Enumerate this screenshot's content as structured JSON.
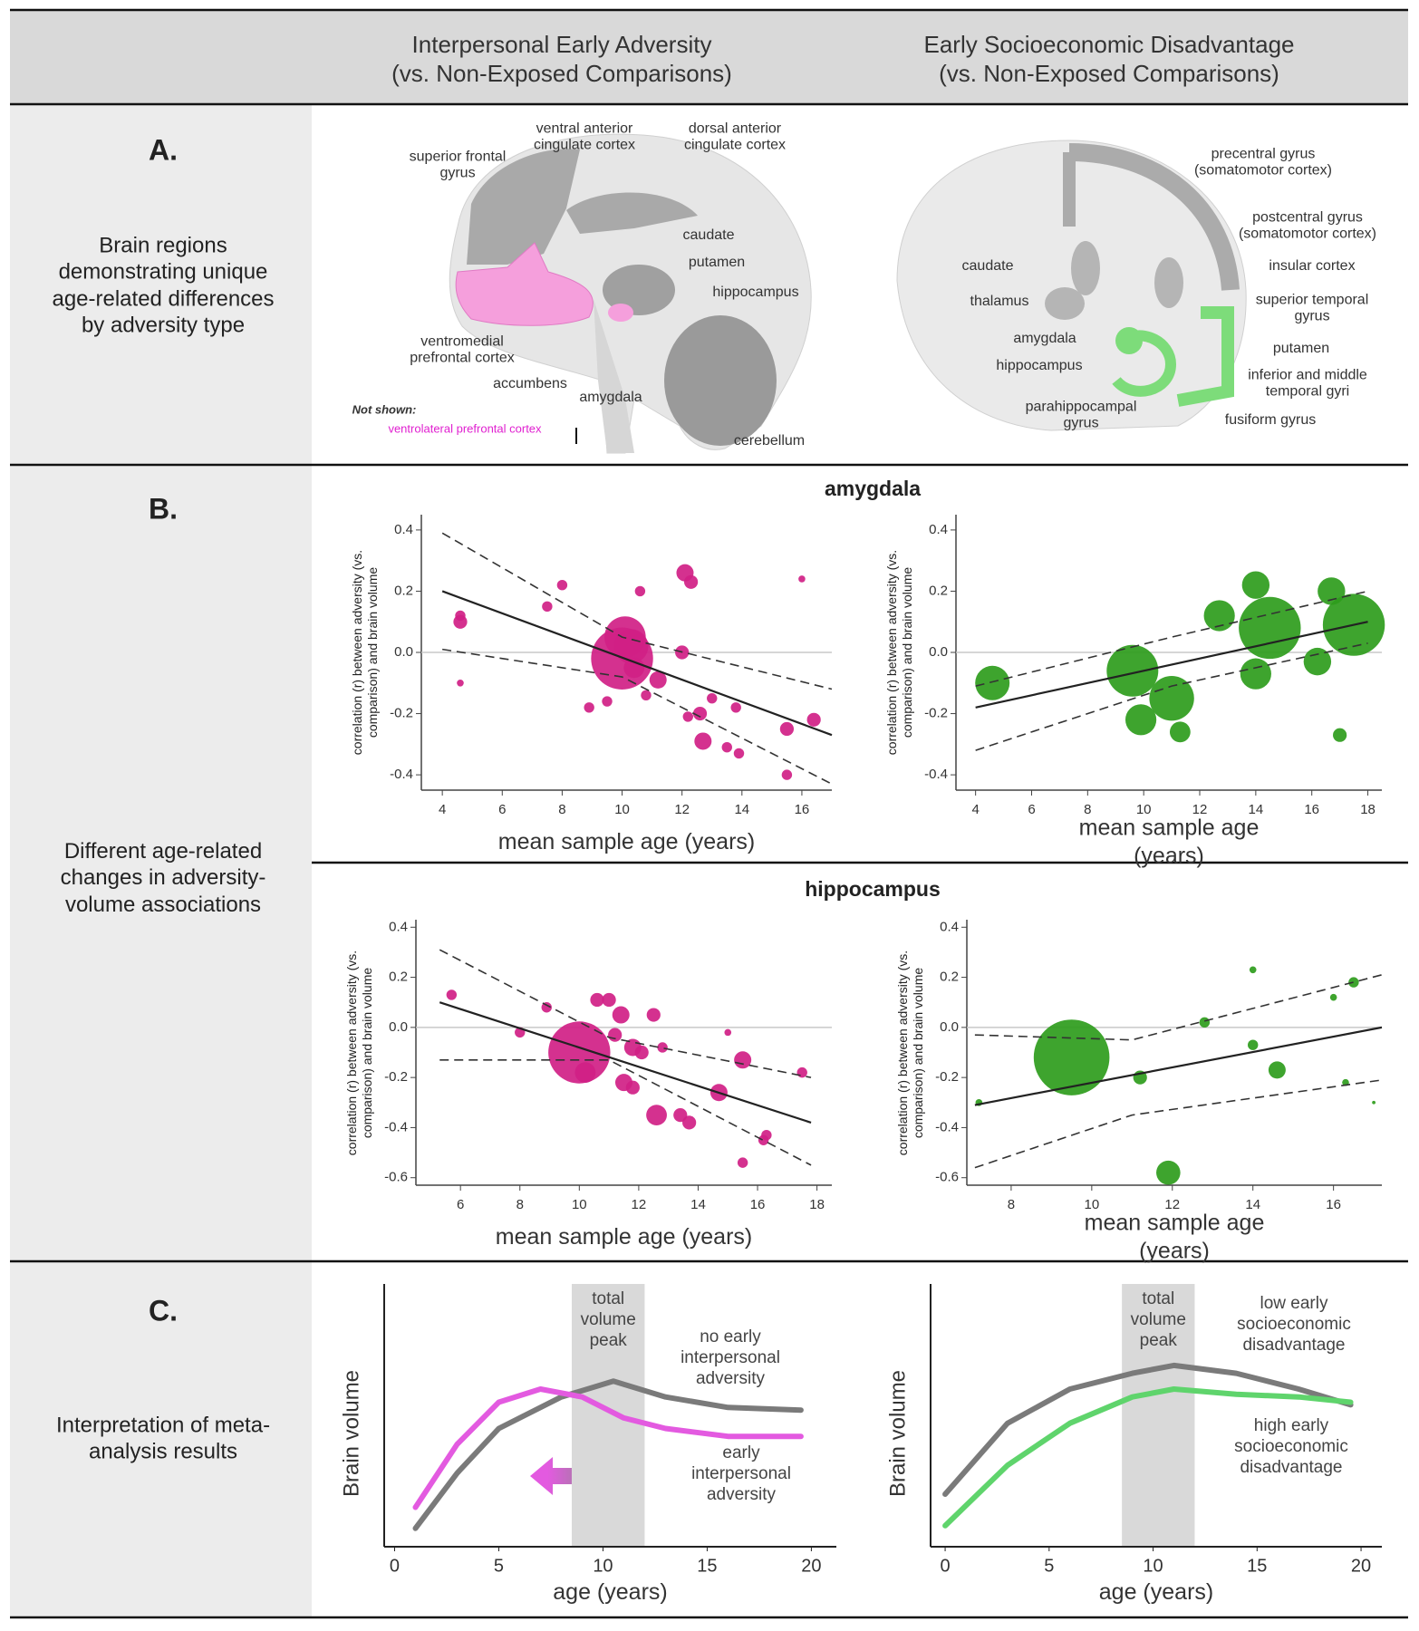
{
  "header": {
    "columns": [
      {
        "title": "Interpersonal Early Adversity",
        "subtitle": "(vs. Non-Exposed Comparisons)"
      },
      {
        "title": "Early Socioeconomic Disadvantage",
        "subtitle": "(vs. Non-Exposed Comparisons)"
      }
    ]
  },
  "sections": [
    {
      "letter": "A.",
      "description": "Brain regions demonstrating unique age-related differences by adversity type"
    },
    {
      "letter": "B.",
      "description": "Different age-related changes in adversity-volume associations"
    },
    {
      "letter": "C.",
      "description": "Interpretation of meta-analysis results"
    }
  ],
  "brain_labels": {
    "interpersonal": [
      "superior frontal gyrus",
      "ventral anterior cingulate cortex",
      "dorsal anterior cingulate cortex",
      "caudate",
      "putamen",
      "hippocampus",
      "ventromedial prefrontal cortex",
      "accumbens",
      "amygdala",
      "cerebellum"
    ],
    "not_shown": {
      "heading": "Not shown:",
      "text": "ventrolateral prefrontal cortex"
    },
    "socioeconomic": [
      "precentral gyrus (somatomotor cortex)",
      "postcentral gyrus (somatomotor cortex)",
      "insular cortex",
      "caudate",
      "thalamus",
      "superior temporal gyrus",
      "amygdala",
      "hippocampus",
      "putamen",
      "inferior and middle temporal gyri",
      "parahippocampal gyrus",
      "fusiform gyrus"
    ]
  },
  "panel_titles": [
    "amygdala",
    "hippocampus"
  ],
  "chart_data": [
    {
      "type": "scatter",
      "color": "#d01f86",
      "xlabel": "mean sample age (years)",
      "ylabel": "correlation (r) between adversity (vs. comparison) and brain volume",
      "xlim": [
        3.3,
        17
      ],
      "ylim": [
        -0.45,
        0.45
      ],
      "xticks": [
        4,
        6,
        8,
        10,
        12,
        14,
        16
      ],
      "yticks": [
        0.4,
        0.2,
        {
          "value": 0,
          "label": "0.0"
        },
        -0.2,
        -0.4
      ],
      "hline": 0,
      "x": [
        4.6,
        4.6,
        4.6,
        7.5,
        8,
        8.9,
        9.5,
        10.1,
        10,
        10.3,
        10.4,
        10.6,
        10.8,
        11.2,
        12,
        12.1,
        12.3,
        12.2,
        12.6,
        12.7,
        13,
        13.5,
        13.8,
        13.9,
        15.5,
        15.5,
        16,
        16.4
      ],
      "values": [
        0.12,
        0.1,
        -0.1,
        0.15,
        0.22,
        -0.18,
        -0.16,
        0.05,
        -0.02,
        0.02,
        -0.05,
        0.2,
        -0.14,
        -0.09,
        0,
        0.26,
        0.23,
        -0.21,
        -0.2,
        -0.29,
        -0.15,
        -0.31,
        -0.18,
        -0.33,
        -0.25,
        -0.4,
        0.24,
        -0.22
      ],
      "sizes": [
        3,
        4,
        2,
        3,
        3,
        3,
        3,
        12,
        18,
        10,
        6,
        3,
        3,
        5,
        4,
        5,
        4,
        3,
        4,
        5,
        3,
        3,
        3,
        3,
        4,
        3,
        2,
        4
      ],
      "fit": {
        "x": [
          4,
          17
        ],
        "values": [
          0.2,
          -0.27
        ]
      },
      "ci_upper": {
        "x": [
          4,
          10,
          17
        ],
        "values": [
          0.39,
          0.05,
          -0.12
        ]
      },
      "ci_lower": {
        "x": [
          4,
          10,
          17
        ],
        "values": [
          0.01,
          -0.08,
          -0.43
        ]
      }
    },
    {
      "type": "scatter",
      "color": "#2e9c1c",
      "xlabel": "mean sample age (years)",
      "ylabel": "correlation (r) between adversity (vs. comparison) and brain volume",
      "xlim": [
        3.3,
        18.5
      ],
      "ylim": [
        -0.45,
        0.45
      ],
      "xticks": [
        4,
        6,
        8,
        10,
        12,
        14,
        16,
        18
      ],
      "yticks": [
        0.4,
        0.2,
        {
          "value": 0,
          "label": "0.0"
        },
        -0.2,
        -0.4
      ],
      "hline": 0,
      "x": [
        4.6,
        9.6,
        9.9,
        11,
        11.3,
        12.7,
        14,
        14,
        14.5,
        16.7,
        16.2,
        17.5,
        17
      ],
      "values": [
        -0.1,
        -0.06,
        -0.22,
        -0.15,
        -0.26,
        0.12,
        0.22,
        -0.07,
        0.08,
        0.2,
        -0.03,
        0.09,
        -0.27
      ],
      "sizes": [
        10,
        15,
        9,
        13,
        6,
        9,
        8,
        9,
        18,
        8,
        8,
        18,
        4
      ],
      "fit": {
        "x": [
          4,
          18
        ],
        "values": [
          -0.18,
          0.1
        ]
      },
      "ci_upper": {
        "x": [
          4,
          11,
          18
        ],
        "values": [
          -0.11,
          0.05,
          0.2
        ]
      },
      "ci_lower": {
        "x": [
          4,
          11,
          18
        ],
        "values": [
          -0.32,
          -0.11,
          0.03
        ]
      }
    },
    {
      "type": "scatter",
      "color": "#d01f86",
      "xlabel": "mean sample age (years)",
      "ylabel": "correlation (r) between adversity (vs. comparison) and brain volume",
      "xlim": [
        4.5,
        18.5
      ],
      "ylim": [
        -0.63,
        0.43
      ],
      "xticks": [
        6,
        8,
        10,
        12,
        14,
        16,
        18
      ],
      "yticks": [
        0.4,
        0.2,
        {
          "value": 0,
          "label": "0.0"
        },
        -0.2,
        -0.4,
        -0.6
      ],
      "hline": 0,
      "x": [
        5.7,
        8,
        8.9,
        10,
        10.2,
        10.6,
        11,
        11.2,
        11.4,
        11.5,
        11.8,
        11.8,
        12.1,
        12.5,
        12.6,
        12.8,
        13.4,
        13.7,
        14.7,
        15,
        15.5,
        15.5,
        16.3,
        16.2,
        17.5
      ],
      "values": [
        0.13,
        -0.02,
        0.08,
        -0.1,
        -0.18,
        0.11,
        0.11,
        -0.03,
        0.05,
        -0.22,
        -0.08,
        -0.24,
        -0.1,
        0.05,
        -0.35,
        -0.08,
        -0.35,
        -0.38,
        -0.26,
        -0.02,
        -0.13,
        -0.54,
        -0.43,
        -0.45,
        -0.18
      ],
      "sizes": [
        3,
        3,
        3,
        18,
        6,
        4,
        4,
        4,
        5,
        5,
        5,
        4,
        4,
        4,
        6,
        3,
        4,
        4,
        5,
        2,
        5,
        3,
        3,
        3,
        3
      ],
      "fit": {
        "x": [
          5.3,
          17.8
        ],
        "values": [
          0.1,
          -0.38
        ]
      },
      "ci_upper": {
        "x": [
          5.3,
          11,
          17.8
        ],
        "values": [
          0.31,
          -0.04,
          -0.2
        ]
      },
      "ci_lower": {
        "x": [
          5.3,
          11,
          17.8
        ],
        "values": [
          -0.13,
          -0.13,
          -0.55
        ]
      }
    },
    {
      "type": "scatter",
      "color": "#2e9c1c",
      "xlabel": "mean sample age (years)",
      "ylabel": "correlation (r) between adversity (vs. comparison) and brain volume",
      "xlim": [
        6.9,
        17.2
      ],
      "ylim": [
        -0.63,
        0.43
      ],
      "xticks": [
        8,
        10,
        12,
        14,
        16
      ],
      "yticks": [
        0.4,
        0.2,
        {
          "value": 0,
          "label": "0.0"
        },
        -0.2,
        -0.4,
        -0.6
      ],
      "hline": 0,
      "x": [
        7.2,
        9.5,
        11.2,
        11.9,
        12.8,
        14,
        14,
        14.6,
        16,
        16.3,
        16.5,
        17
      ],
      "values": [
        -0.3,
        -0.12,
        -0.2,
        -0.58,
        0.02,
        0.23,
        -0.07,
        -0.17,
        0.12,
        -0.22,
        0.18,
        -0.3
      ],
      "sizes": [
        2,
        22,
        4,
        7,
        3,
        2,
        3,
        5,
        2,
        2,
        3,
        1
      ],
      "fit": {
        "x": [
          7.1,
          17.2
        ],
        "values": [
          -0.31,
          0
        ]
      },
      "ci_upper": {
        "x": [
          7.1,
          11,
          17.2
        ],
        "values": [
          -0.03,
          -0.05,
          0.21
        ]
      },
      "ci_lower": {
        "x": [
          7.1,
          11,
          17.2
        ],
        "values": [
          -0.56,
          -0.35,
          -0.21
        ]
      }
    },
    {
      "type": "line",
      "xlabel": "age (years)",
      "ylabel": "Brain volume",
      "xlim": [
        -0.5,
        21.2
      ],
      "ylim": [
        0,
        1
      ],
      "xticks": [
        0,
        5,
        10,
        15,
        20
      ],
      "band": [
        8.5,
        12
      ],
      "band_label": "total volume peak",
      "series": [
        {
          "name": "no early interpersonal adversity",
          "color": "#7a7a7a",
          "x": [
            1,
            3,
            5,
            8,
            10.5,
            13,
            16,
            19.5
          ],
          "values": [
            0.07,
            0.28,
            0.45,
            0.57,
            0.63,
            0.57,
            0.53,
            0.52
          ]
        },
        {
          "name": "early interpersonal adversity",
          "color": "#e35ae0",
          "x": [
            1,
            3,
            5,
            7,
            9,
            11,
            13,
            16,
            19.5
          ],
          "values": [
            0.15,
            0.39,
            0.55,
            0.6,
            0.57,
            0.49,
            0.45,
            0.42,
            0.42
          ]
        }
      ]
    },
    {
      "type": "line",
      "xlabel": "age (years)",
      "ylabel": "Brain volume",
      "xlim": [
        -0.7,
        21
      ],
      "ylim": [
        0,
        1
      ],
      "xticks": [
        0,
        5,
        10,
        15,
        20
      ],
      "band": [
        8.5,
        12
      ],
      "band_label": "total volume peak",
      "series": [
        {
          "name": "low early socioeconomic disadvantage",
          "color": "#7a7a7a",
          "x": [
            0,
            3,
            6,
            9,
            11,
            14,
            17,
            19.5
          ],
          "values": [
            0.2,
            0.47,
            0.6,
            0.66,
            0.69,
            0.66,
            0.6,
            0.54
          ]
        },
        {
          "name": "high early socioeconomic disadvantage",
          "color": "#5fd46c",
          "x": [
            0,
            3,
            6,
            9,
            11,
            14,
            17,
            19.5
          ],
          "values": [
            0.08,
            0.31,
            0.47,
            0.57,
            0.6,
            0.58,
            0.57,
            0.55
          ]
        }
      ]
    }
  ]
}
